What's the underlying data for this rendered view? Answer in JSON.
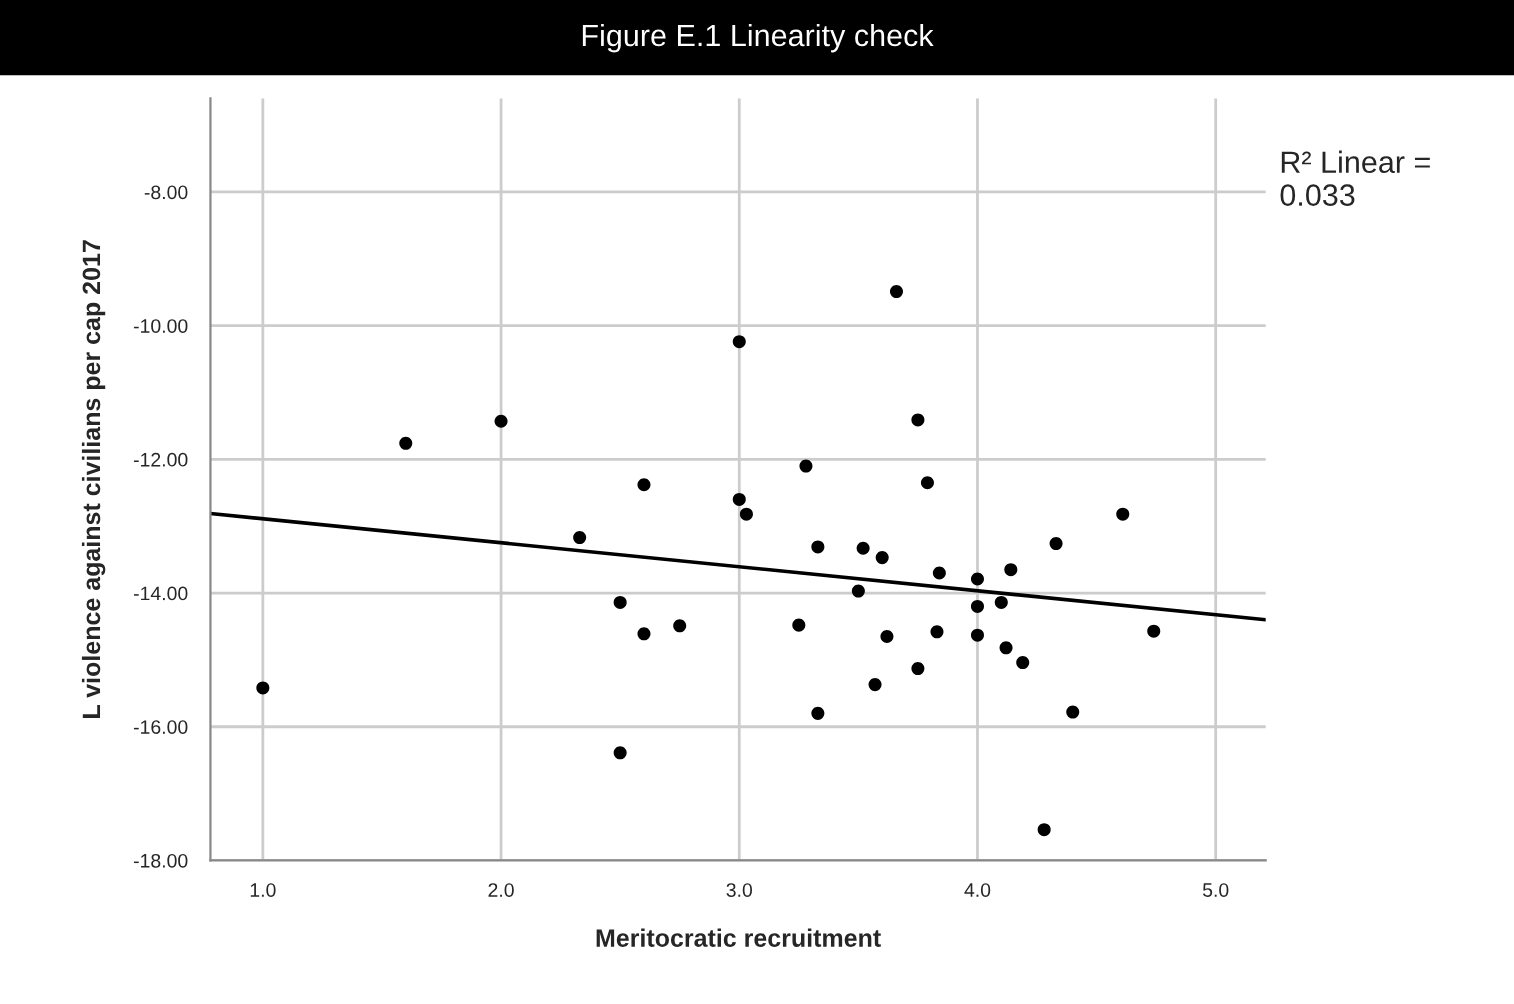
{
  "chart_data": {
    "type": "scatter",
    "title": "Figure E.1 Linearity check",
    "xlabel": "Meritocratic recruitment",
    "ylabel": "L violence against civilians per cap 2017",
    "annotations": [
      "R² Linear =\n0.033"
    ],
    "series": [
      {
        "color": "#000000",
        "marker": "circle",
        "x": [
          1.0,
          1.6,
          2.0,
          2.33,
          2.5,
          2.6,
          2.6,
          2.5,
          2.75,
          3.66,
          3.0,
          3.75,
          3.28,
          3.79,
          3.0,
          3.03,
          4.61,
          3.33,
          3.52,
          3.6,
          4.33,
          3.84,
          4.0,
          4.14,
          3.5,
          4.0,
          4.1,
          3.25,
          3.62,
          3.83,
          4.0,
          4.74,
          4.12,
          4.19,
          3.75,
          3.57,
          3.33,
          4.4,
          4.28
        ],
        "values": [
          -15.42,
          -11.76,
          -11.43,
          -13.17,
          -14.14,
          -12.38,
          -14.61,
          -16.39,
          -14.49,
          -9.49,
          -10.24,
          -11.41,
          -12.1,
          -12.35,
          -12.6,
          -12.82,
          -12.82,
          -13.31,
          -13.33,
          -13.47,
          -13.26,
          -13.7,
          -13.79,
          -13.65,
          -13.97,
          -14.2,
          -14.14,
          -14.48,
          -14.65,
          -14.58,
          -14.63,
          -14.57,
          -14.82,
          -15.04,
          -15.13,
          -15.37,
          -15.8,
          -15.78,
          -17.54
        ]
      },
      {
        "type": "line",
        "color": "#000000",
        "marker": "none",
        "line_style": "solid",
        "x": [
          0.78,
          5.21
        ],
        "values": [
          -12.81,
          -14.4
        ]
      }
    ],
    "xlim": [
      0.78,
      5.21
    ],
    "ylim": [
      -18,
      -6.6
    ],
    "xticks": [
      {
        "value": 1,
        "label": "1.0"
      },
      {
        "value": 2,
        "label": "2.0"
      },
      {
        "value": 3,
        "label": "3.0"
      },
      {
        "value": 4,
        "label": "4.0"
      },
      {
        "value": 5,
        "label": "5.0"
      }
    ],
    "yticks": [
      {
        "value": -18,
        "label": "-18.00"
      },
      {
        "value": -16,
        "label": "-16.00"
      },
      {
        "value": -14,
        "label": "-14.00"
      },
      {
        "value": -12,
        "label": "-12.00"
      },
      {
        "value": -10,
        "label": "-10.00"
      },
      {
        "value": -8,
        "label": "-8.00"
      }
    ],
    "grid": true,
    "legend": false
  }
}
